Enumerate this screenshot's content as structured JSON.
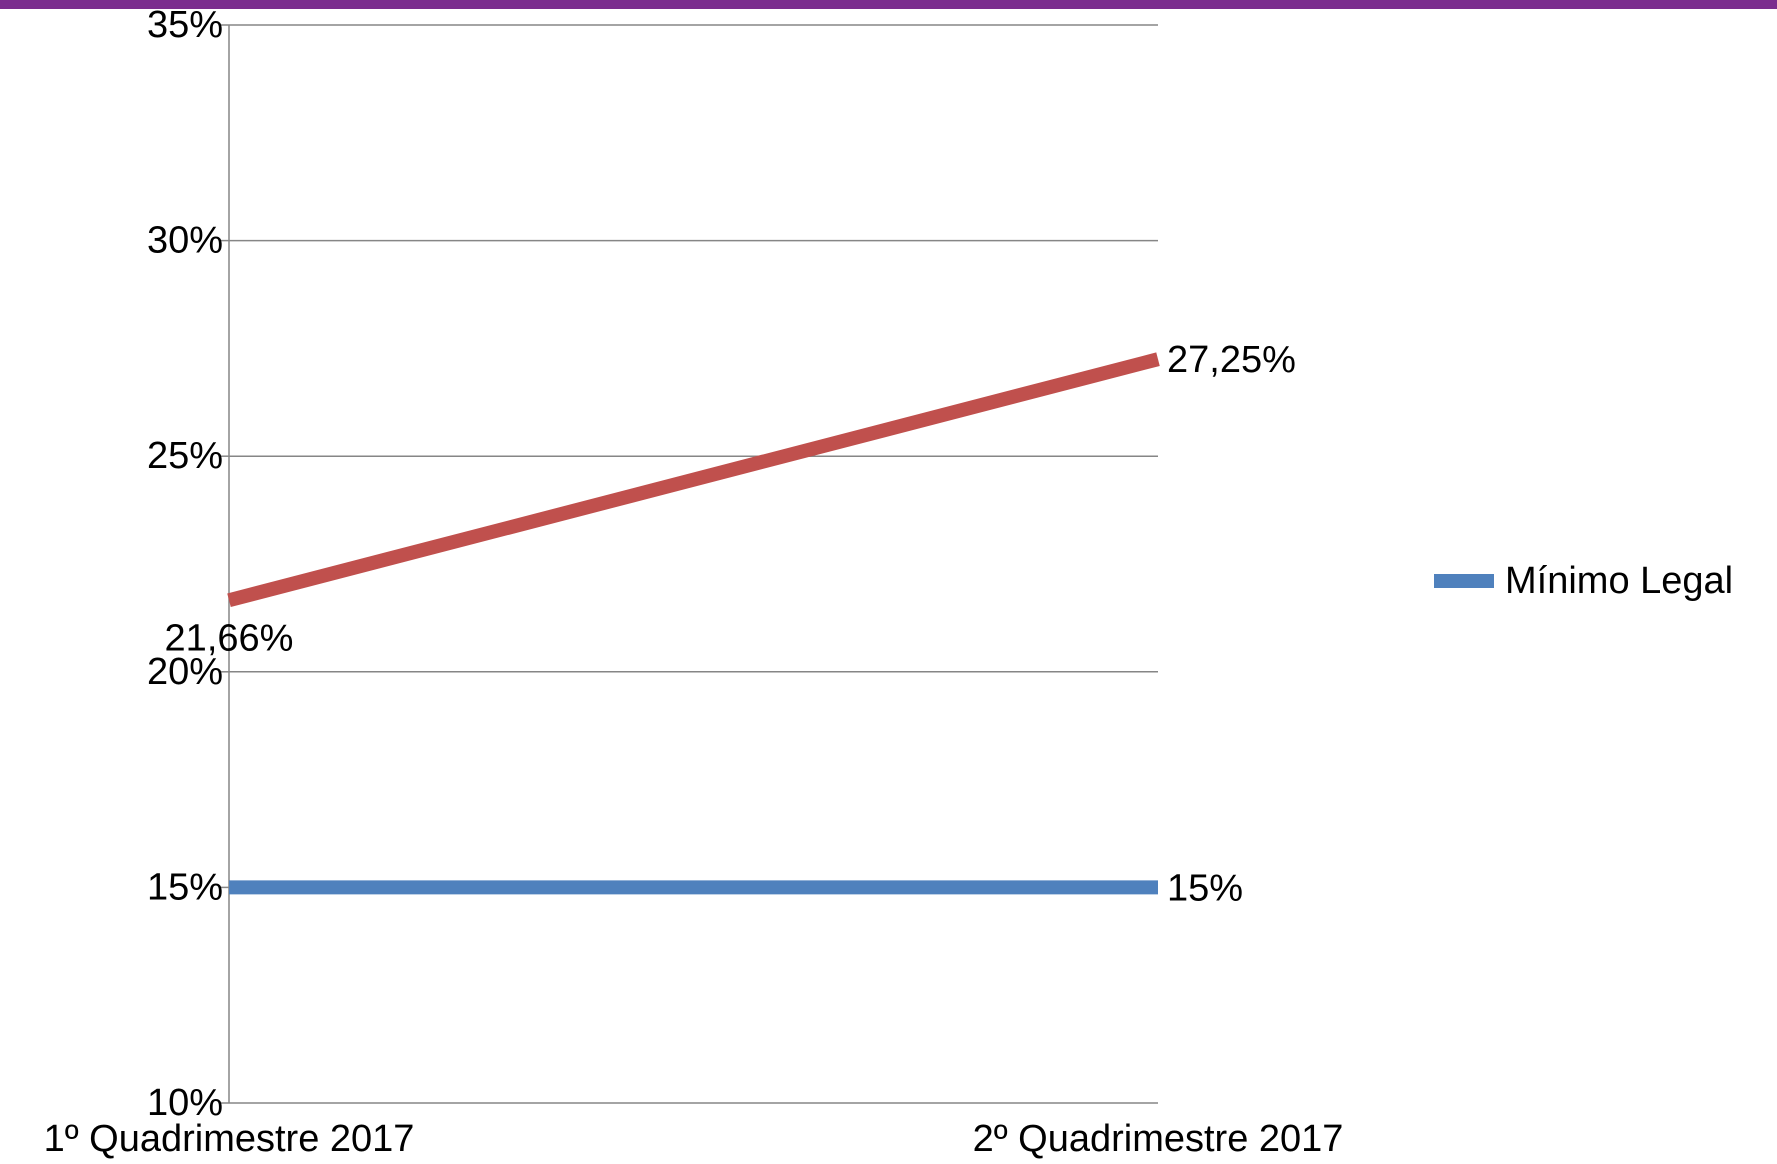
{
  "chart_data": {
    "type": "line",
    "categories": [
      "1º Quadrimestre 2017",
      "2º Quadrimestre 2017"
    ],
    "series": [
      {
        "color": "#c0504d",
        "values": [
          21.66,
          27.25
        ],
        "value_labels": [
          "21,66%",
          "27,25%"
        ]
      },
      {
        "name": "Mínimo Legal",
        "color": "#4f81bd",
        "values": [
          15,
          15
        ],
        "value_labels": [
          "15%",
          "15%"
        ]
      }
    ],
    "ylim": [
      10,
      35
    ],
    "yticks": [
      {
        "value": 10,
        "label": "10%"
      },
      {
        "value": 15,
        "label": "15%"
      },
      {
        "value": 20,
        "label": "20%"
      },
      {
        "value": 25,
        "label": "25%"
      },
      {
        "value": 30,
        "label": "30%"
      },
      {
        "value": 35,
        "label": "35%"
      }
    ],
    "grid": true,
    "legend": "right"
  }
}
